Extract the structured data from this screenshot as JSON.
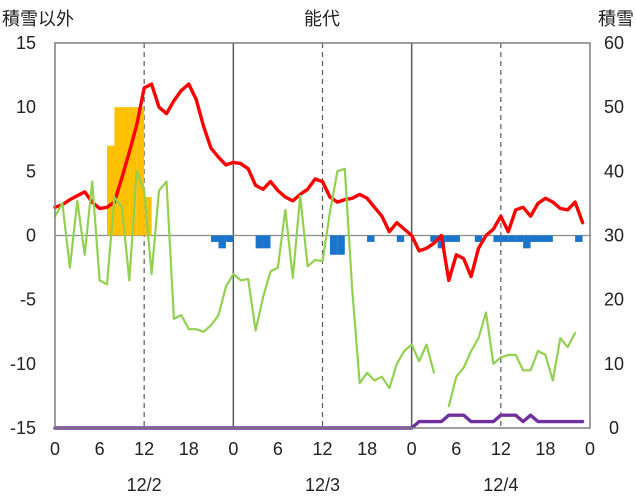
{
  "chart_data": {
    "type": "bar+line",
    "title": "能代",
    "left_axis": {
      "label": "積雪以外",
      "range": [
        -15,
        15
      ],
      "ticks": [
        15,
        10,
        5,
        0,
        -5,
        -10,
        -15
      ]
    },
    "right_axis": {
      "label": "積雪",
      "range": [
        0,
        60
      ],
      "ticks": [
        60,
        50,
        40,
        30,
        20,
        10,
        0
      ]
    },
    "x_axis": {
      "range_hours": [
        0,
        72
      ],
      "tick_labels": [
        "0",
        "6",
        "12",
        "18",
        "0",
        "6",
        "12",
        "18",
        "0",
        "6",
        "12",
        "18",
        "0"
      ],
      "day_labels": [
        "12/2",
        "12/3",
        "12/4"
      ]
    },
    "grid": {
      "solid_vertical_hours": [
        24,
        48
      ],
      "dashed_vertical_hours": [
        12,
        36,
        60
      ]
    },
    "colors": {
      "snowfall_bars": "#FFC000",
      "precip_bars": "#1874CD",
      "temperature": "#FF0000",
      "green_series": "#92D050",
      "snow_depth": "#7030A0",
      "frame": "#7f7f7f"
    },
    "series": [
      {
        "kind": "bar",
        "axis": "left",
        "color_key": "snowfall_bars",
        "points": [
          [
            7.5,
            7
          ],
          [
            8.5,
            10
          ],
          [
            9.5,
            10
          ],
          [
            10.5,
            10
          ],
          [
            11.5,
            10
          ],
          [
            12.5,
            3
          ]
        ]
      },
      {
        "kind": "bar",
        "axis": "left",
        "color_key": "precip_bars",
        "points": [
          [
            21.5,
            -0.5
          ],
          [
            22.5,
            -1
          ],
          [
            23.5,
            -0.5
          ],
          [
            27.5,
            -1
          ],
          [
            28.5,
            -1
          ],
          [
            37.5,
            -1.5
          ],
          [
            38.5,
            -1.5
          ],
          [
            42.5,
            -0.5
          ],
          [
            46.5,
            -0.5
          ],
          [
            51,
            -0.5
          ],
          [
            52,
            -1
          ],
          [
            53,
            -0.5
          ],
          [
            54,
            -0.5
          ],
          [
            57,
            -0.5
          ],
          [
            59.5,
            -0.5
          ],
          [
            60.5,
            -0.5
          ],
          [
            61.5,
            -0.5
          ],
          [
            62.5,
            -0.5
          ],
          [
            63.5,
            -1
          ],
          [
            64.5,
            -0.5
          ],
          [
            65.5,
            -0.5
          ],
          [
            66.5,
            -0.5
          ],
          [
            70.5,
            -0.5
          ]
        ]
      },
      {
        "kind": "line",
        "axis": "left",
        "color_key": "temperature",
        "points": [
          [
            0,
            2.2
          ],
          [
            1,
            2.4
          ],
          [
            2,
            2.8
          ],
          [
            3,
            3.1
          ],
          [
            4,
            3.4
          ],
          [
            5,
            2.6
          ],
          [
            6,
            2.1
          ],
          [
            7,
            2.2
          ],
          [
            8,
            2.6
          ],
          [
            9,
            4.5
          ],
          [
            10,
            6.5
          ],
          [
            11,
            8.6
          ],
          [
            12,
            11.5
          ],
          [
            13,
            11.8
          ],
          [
            14,
            10
          ],
          [
            15,
            9.5
          ],
          [
            16,
            10.5
          ],
          [
            17,
            11.3
          ],
          [
            18,
            11.8
          ],
          [
            19,
            10.6
          ],
          [
            20,
            8.5
          ],
          [
            21,
            6.8
          ],
          [
            22,
            6.1
          ],
          [
            23,
            5.5
          ],
          [
            24,
            5.7
          ],
          [
            25,
            5.6
          ],
          [
            26,
            5.2
          ],
          [
            27,
            3.9
          ],
          [
            28,
            3.6
          ],
          [
            29,
            4.2
          ],
          [
            30,
            3.5
          ],
          [
            31,
            3
          ],
          [
            32,
            2.7
          ],
          [
            33,
            3.2
          ],
          [
            34,
            3.6
          ],
          [
            35,
            4.4
          ],
          [
            36,
            4.2
          ],
          [
            37,
            3
          ],
          [
            38,
            2.6
          ],
          [
            39,
            2.8
          ],
          [
            40,
            2.9
          ],
          [
            41,
            3.2
          ],
          [
            42,
            2.9
          ],
          [
            43,
            2.2
          ],
          [
            44,
            1.5
          ],
          [
            45,
            0.3
          ],
          [
            46,
            1
          ],
          [
            47,
            0.5
          ],
          [
            48,
            0
          ],
          [
            49,
            -1.2
          ],
          [
            50,
            -1
          ],
          [
            51,
            -0.6
          ],
          [
            52,
            0
          ],
          [
            53,
            -3.5
          ],
          [
            54,
            -1.5
          ],
          [
            55,
            -1.8
          ],
          [
            56,
            -3.2
          ],
          [
            57,
            -1
          ],
          [
            58,
            0
          ],
          [
            59,
            0.5
          ],
          [
            60,
            1.5
          ],
          [
            61,
            0.3
          ],
          [
            62,
            2
          ],
          [
            63,
            2.2
          ],
          [
            64,
            1.5
          ],
          [
            65,
            2.5
          ],
          [
            66,
            2.9
          ],
          [
            67,
            2.6
          ],
          [
            68,
            2.1
          ],
          [
            69,
            2
          ],
          [
            70,
            2.6
          ],
          [
            71,
            1
          ]
        ]
      },
      {
        "kind": "line",
        "axis": "left",
        "color_key": "green_series",
        "segments": [
          [
            [
              0,
              1.5
            ],
            [
              1,
              2.5
            ],
            [
              2,
              -2.5
            ],
            [
              3,
              2.7
            ],
            [
              4,
              -1.5
            ],
            [
              5,
              4.2
            ],
            [
              6,
              -3.5
            ],
            [
              7,
              -3.8
            ],
            [
              8,
              3
            ],
            [
              9,
              2.2
            ],
            [
              10,
              -3.5
            ],
            [
              11,
              5
            ],
            [
              12,
              3.5
            ],
            [
              13,
              -3
            ],
            [
              14,
              3.5
            ],
            [
              15,
              4.2
            ],
            [
              16,
              -6.5
            ],
            [
              17,
              -6.2
            ],
            [
              18,
              -7.3
            ],
            [
              19,
              -7.3
            ],
            [
              20,
              -7.5
            ],
            [
              21,
              -7
            ],
            [
              22,
              -6.2
            ],
            [
              23,
              -4
            ],
            [
              24,
              -3
            ],
            [
              25,
              -3.5
            ],
            [
              26,
              -3.4
            ],
            [
              27,
              -7.4
            ],
            [
              28,
              -4.8
            ],
            [
              29,
              -2.8
            ],
            [
              30,
              -2.5
            ],
            [
              31,
              2
            ],
            [
              32,
              -3.3
            ],
            [
              33,
              3.1
            ],
            [
              34,
              -2.4
            ],
            [
              35,
              -1.9
            ],
            [
              36,
              -2
            ],
            [
              37,
              1.8
            ],
            [
              38,
              5
            ],
            [
              39,
              5.2
            ],
            [
              40,
              -4.2
            ],
            [
              41,
              -11.5
            ],
            [
              42,
              -10.7
            ],
            [
              43,
              -11.3
            ],
            [
              44,
              -11
            ],
            [
              45,
              -11.9
            ],
            [
              46,
              -10
            ],
            [
              47,
              -9
            ],
            [
              48,
              -8.5
            ],
            [
              49,
              -9.8
            ],
            [
              50,
              -8.5
            ],
            [
              51,
              -10.7
            ]
          ],
          [
            [
              53,
              -13.3
            ],
            [
              54,
              -11
            ],
            [
              55,
              -10.3
            ],
            [
              56,
              -9
            ],
            [
              57,
              -8
            ],
            [
              58,
              -6
            ],
            [
              59,
              -10
            ],
            [
              60,
              -9.5
            ],
            [
              61,
              -9.3
            ],
            [
              62,
              -9.3
            ],
            [
              63,
              -10.5
            ],
            [
              64,
              -10.5
            ],
            [
              65,
              -9
            ],
            [
              66,
              -9.3
            ],
            [
              67,
              -11.3
            ],
            [
              68,
              -8
            ],
            [
              69,
              -8.7
            ],
            [
              70,
              -7.6
            ]
          ]
        ]
      },
      {
        "kind": "line",
        "axis": "right",
        "color_key": "snow_depth",
        "points": [
          [
            0,
            0
          ],
          [
            48,
            0
          ],
          [
            49,
            1
          ],
          [
            52,
            1
          ],
          [
            53,
            2
          ],
          [
            55,
            2
          ],
          [
            56,
            1
          ],
          [
            59,
            1
          ],
          [
            60,
            2
          ],
          [
            62,
            2
          ],
          [
            63,
            1
          ],
          [
            64,
            2
          ],
          [
            65,
            1
          ],
          [
            71,
            1
          ]
        ]
      }
    ]
  }
}
